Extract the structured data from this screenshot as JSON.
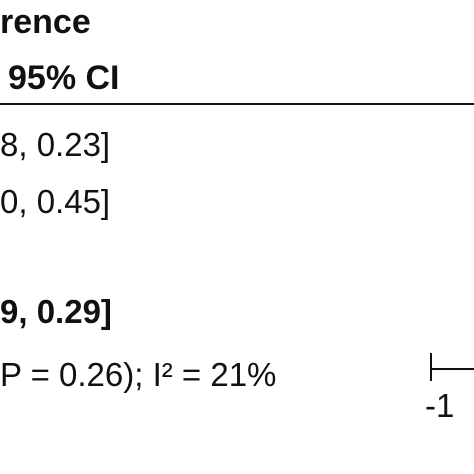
{
  "header": {
    "line1": "rence",
    "line2": "95% CI"
  },
  "rows": [
    "8, 0.23]",
    "0, 0.45]"
  ],
  "total": "9, 0.29]",
  "heterogeneity": "P = 0.26); I² = 21%",
  "axis": {
    "tick_label": "-1"
  }
}
